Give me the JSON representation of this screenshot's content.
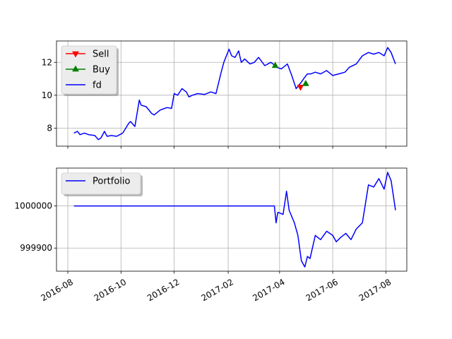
{
  "chart_data": [
    {
      "type": "line",
      "title": "",
      "xlabel": "",
      "ylabel": "",
      "ylim": [
        6.9,
        13.3
      ],
      "yticks": [
        8,
        10,
        12
      ],
      "ytick_labels": [
        "8",
        "10",
        "12"
      ],
      "grid": true,
      "legend_placement": "top-left",
      "series": [
        {
          "name": "fd",
          "color": "#0000ff",
          "x": [
            "2016-08-08",
            "2016-08-12",
            "2016-08-15",
            "2016-08-20",
            "2016-08-25",
            "2016-09-01",
            "2016-09-05",
            "2016-09-08",
            "2016-09-12",
            "2016-09-15",
            "2016-09-20",
            "2016-09-26",
            "2016-10-03",
            "2016-10-10",
            "2016-10-12",
            "2016-10-17",
            "2016-10-22",
            "2016-10-24",
            "2016-10-30",
            "2016-11-05",
            "2016-11-08",
            "2016-11-15",
            "2016-11-20",
            "2016-11-23",
            "2016-11-28",
            "2016-12-01",
            "2016-12-05",
            "2016-12-10",
            "2016-12-15",
            "2016-12-18",
            "2016-12-22",
            "2016-12-28",
            "2017-01-05",
            "2017-01-12",
            "2017-01-18",
            "2017-01-24",
            "2017-01-27",
            "2017-02-02",
            "2017-02-05",
            "2017-02-09",
            "2017-02-13",
            "2017-02-16",
            "2017-02-20",
            "2017-02-26",
            "2017-03-03",
            "2017-03-08",
            "2017-03-15",
            "2017-03-22",
            "2017-03-27",
            "2017-03-29",
            "2017-04-03",
            "2017-04-10",
            "2017-04-15",
            "2017-04-20",
            "2017-04-26",
            "2017-04-30",
            "2017-05-03",
            "2017-05-07",
            "2017-05-12",
            "2017-05-18",
            "2017-05-25",
            "2017-06-01",
            "2017-06-08",
            "2017-06-15",
            "2017-06-20",
            "2017-06-28",
            "2017-07-05",
            "2017-07-12",
            "2017-07-18",
            "2017-07-24",
            "2017-07-30",
            "2017-08-03",
            "2017-08-07",
            "2017-08-12"
          ],
          "values": [
            7.7,
            7.8,
            7.6,
            7.7,
            7.6,
            7.55,
            7.3,
            7.4,
            7.8,
            7.5,
            7.55,
            7.5,
            7.7,
            8.3,
            8.4,
            8.1,
            9.7,
            9.4,
            9.3,
            8.9,
            8.8,
            9.1,
            9.2,
            9.25,
            9.2,
            10.1,
            10.0,
            10.4,
            10.2,
            9.9,
            10.0,
            10.1,
            10.05,
            10.2,
            10.1,
            11.4,
            12.0,
            12.8,
            12.4,
            12.3,
            12.7,
            12.0,
            12.2,
            11.9,
            12.0,
            12.3,
            11.8,
            12.0,
            11.8,
            11.7,
            11.6,
            11.9,
            11.2,
            10.4,
            10.8,
            11.1,
            11.3,
            11.3,
            11.4,
            11.3,
            11.5,
            11.2,
            11.3,
            11.4,
            11.7,
            11.9,
            12.4,
            12.6,
            12.5,
            12.6,
            12.4,
            12.9,
            12.6,
            11.9
          ]
        },
        {
          "name": "Sell",
          "color": "#ff0000",
          "marker": "down-triangle",
          "x": [
            "2017-04-25"
          ],
          "values": [
            10.5
          ]
        },
        {
          "name": "Buy",
          "color": "#008000",
          "marker": "up-triangle",
          "x": [
            "2017-03-27",
            "2017-05-01"
          ],
          "values": [
            11.8,
            10.7
          ]
        }
      ]
    },
    {
      "type": "line",
      "title": "",
      "xlabel": "",
      "ylabel": "",
      "ylim": [
        999845,
        1000090
      ],
      "yticks": [
        999900,
        1000000
      ],
      "ytick_labels": [
        "999900",
        "1000000"
      ],
      "xticks": [
        "2016-08-01",
        "2016-10-01",
        "2016-12-01",
        "2017-02-01",
        "2017-04-01",
        "2017-06-01",
        "2017-08-01"
      ],
      "xtick_labels": [
        "2016-08",
        "2016-10",
        "2016-12",
        "2017-02",
        "2017-04",
        "2017-06",
        "2017-08"
      ],
      "grid": true,
      "legend_placement": "top-left",
      "series": [
        {
          "name": "Portfolio",
          "color": "#0000ff",
          "x": [
            "2016-08-08",
            "2017-03-26",
            "2017-03-28",
            "2017-03-30",
            "2017-04-05",
            "2017-04-09",
            "2017-04-12",
            "2017-04-18",
            "2017-04-22",
            "2017-04-26",
            "2017-04-30",
            "2017-05-03",
            "2017-05-06",
            "2017-05-12",
            "2017-05-18",
            "2017-05-25",
            "2017-06-01",
            "2017-06-05",
            "2017-06-10",
            "2017-06-16",
            "2017-06-22",
            "2017-06-28",
            "2017-07-05",
            "2017-07-12",
            "2017-07-18",
            "2017-07-24",
            "2017-07-30",
            "2017-08-03",
            "2017-08-07",
            "2017-08-12"
          ],
          "values": [
            1000000,
            1000000,
            999960,
            999985,
            999980,
            1000035,
            999990,
            999960,
            999930,
            999870,
            999855,
            999880,
            999875,
            999930,
            999920,
            999940,
            999930,
            999915,
            999925,
            999935,
            999920,
            999945,
            999960,
            1000050,
            1000045,
            1000065,
            1000040,
            1000080,
            1000060,
            999990
          ]
        }
      ]
    }
  ]
}
